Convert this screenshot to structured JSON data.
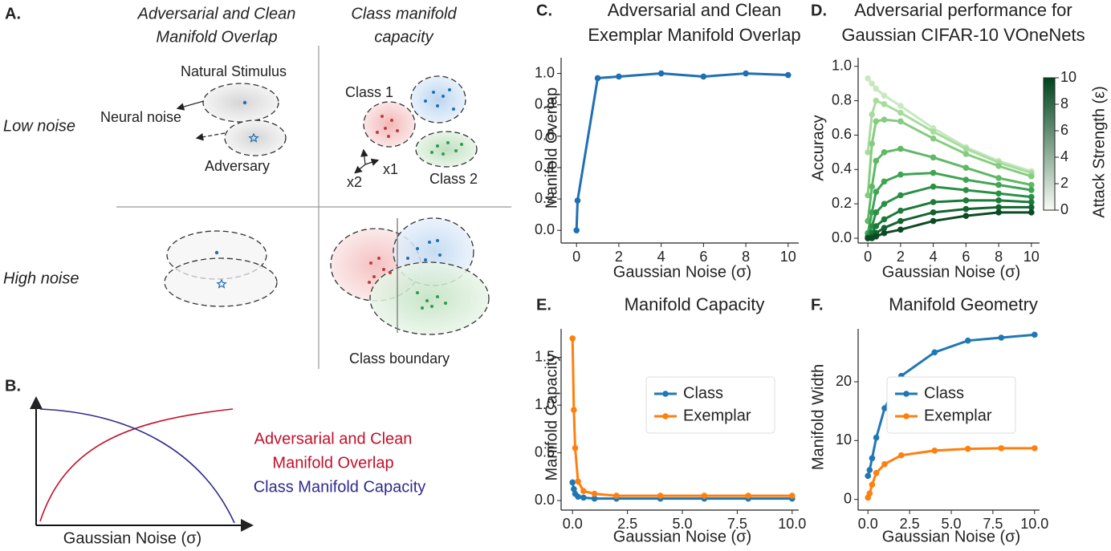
{
  "diagram_a": {
    "label": "A.",
    "column_headers": [
      [
        "Adversarial and Clean",
        "Manifold Overlap"
      ],
      [
        "Class manifold",
        "capacity"
      ]
    ],
    "row_labels": [
      "Low noise",
      "High noise"
    ],
    "annotations": [
      "Natural Stimulus",
      "Neural noise",
      "Adversary",
      "Class 1",
      "x1",
      "x2",
      "Class 2",
      "Class boundary"
    ]
  },
  "diagram_b": {
    "label": "B.",
    "curves": [
      {
        "label": [
          "Adversarial and Clean",
          "Manifold Overlap"
        ],
        "color": "#c0112b"
      },
      {
        "label": [
          "Class Manifold Capacity"
        ],
        "color": "#2e2a8c"
      }
    ],
    "x_label": "Gaussian Noise (σ)"
  },
  "chart_data": [
    {
      "type": "line",
      "label": "C.",
      "title": [
        "Adversarial and Clean",
        "Exemplar Manifold Overlap"
      ],
      "x_label": "Gaussian Noise (σ)",
      "y_label": "Manifold Overlap",
      "x": [
        0,
        0.05,
        1,
        2,
        4,
        6,
        8,
        10
      ],
      "series": [
        {
          "color": "#1f6fb4",
          "values": [
            0,
            0.19,
            0.97,
            0.98,
            1.0,
            0.98,
            1.0,
            0.99
          ]
        }
      ],
      "xlim": [
        -0.5,
        10.5
      ],
      "xticks": [
        0,
        2,
        4,
        6,
        8,
        10
      ],
      "ylim": [
        -0.05,
        1.1
      ],
      "yticks": [
        {
          "value": 0,
          "label": "0.0"
        },
        0.2,
        0.4,
        0.6,
        0.8,
        {
          "value": 1,
          "label": "1.0"
        }
      ]
    },
    {
      "type": "line",
      "label": "D.",
      "title": [
        "Adversarial performance for",
        "Gaussian CIFAR-10 VOneNets"
      ],
      "x_label": "Gaussian Noise (σ)",
      "y_label": "Accuracy",
      "x": [
        0,
        0.25,
        0.5,
        1,
        2,
        4,
        6,
        8,
        10
      ],
      "series": [
        {
          "color": "#c7e9c0",
          "values": [
            0.93,
            0.9,
            0.87,
            0.83,
            0.77,
            0.64,
            0.53,
            0.45,
            0.39
          ]
        },
        {
          "color": "#a8dc9f",
          "values": [
            0.5,
            0.72,
            0.8,
            0.78,
            0.73,
            0.62,
            0.52,
            0.44,
            0.38
          ]
        },
        {
          "color": "#86cc80",
          "values": [
            0.25,
            0.55,
            0.68,
            0.69,
            0.68,
            0.58,
            0.49,
            0.42,
            0.36
          ]
        },
        {
          "color": "#5fb866",
          "values": [
            0.1,
            0.3,
            0.45,
            0.5,
            0.52,
            0.47,
            0.41,
            0.35,
            0.31
          ]
        },
        {
          "color": "#3fa453",
          "values": [
            0.03,
            0.15,
            0.27,
            0.33,
            0.37,
            0.38,
            0.34,
            0.31,
            0.28
          ]
        },
        {
          "color": "#2a9046",
          "values": [
            0.01,
            0.07,
            0.15,
            0.2,
            0.25,
            0.3,
            0.28,
            0.26,
            0.24
          ]
        },
        {
          "color": "#1c7a3a",
          "values": [
            0,
            0.03,
            0.07,
            0.11,
            0.16,
            0.21,
            0.22,
            0.22,
            0.21
          ]
        },
        {
          "color": "#13632f",
          "values": [
            0,
            0.01,
            0.03,
            0.06,
            0.1,
            0.15,
            0.17,
            0.18,
            0.18
          ]
        },
        {
          "color": "#0c4a23",
          "values": [
            0,
            0,
            0.01,
            0.03,
            0.05,
            0.1,
            0.13,
            0.15,
            0.15
          ]
        }
      ],
      "xlim": [
        -0.3,
        10.5
      ],
      "xticks": [
        0,
        2,
        4,
        6,
        8,
        10
      ],
      "ylim": [
        0,
        1.05
      ],
      "yticks": [
        {
          "value": 0,
          "label": "0.0"
        },
        0.2,
        0.4,
        0.6,
        0.8,
        {
          "value": 1,
          "label": "1.0"
        }
      ],
      "colorbar": {
        "label": "Attack Strength (ε)",
        "lim": [
          0,
          10
        ],
        "ticks": [
          0,
          2,
          4,
          6,
          8,
          10
        ],
        "colors": [
          "#f7fcf5",
          "#00441b"
        ]
      }
    },
    {
      "type": "line",
      "label": "E.",
      "title": [
        "Manifold Capacity"
      ],
      "x_label": "Gaussian Noise (σ)",
      "y_label": "Manifold Capacity",
      "x": [
        0,
        0.06,
        0.12,
        0.25,
        0.5,
        1,
        2,
        4,
        6,
        8,
        10
      ],
      "series": [
        {
          "name": "Class",
          "color": "#1f77b4",
          "values": [
            0.19,
            0.12,
            0.07,
            0.04,
            0.03,
            0.02,
            0.02,
            0.02,
            0.02,
            0.02,
            0.02
          ]
        },
        {
          "name": "Exemplar",
          "color": "#ff7f0e",
          "values": [
            1.7,
            0.95,
            0.55,
            0.2,
            0.1,
            0.07,
            0.05,
            0.05,
            0.05,
            0.05,
            0.05
          ]
        }
      ],
      "xlim": [
        -0.3,
        10.3
      ],
      "xticks": [
        {
          "value": 0,
          "label": "0.0"
        },
        2.5,
        {
          "value": 5,
          "label": "5.0"
        },
        7.5,
        {
          "value": 10,
          "label": "10.0"
        }
      ],
      "ylim": [
        -0.05,
        1.8
      ],
      "yticks": [
        {
          "value": 0,
          "label": "0.0"
        },
        0.5,
        {
          "value": 1,
          "label": "1.0"
        },
        1.5
      ],
      "legend": "center right"
    },
    {
      "type": "line",
      "label": "F.",
      "title": [
        "Manifold Geometry"
      ],
      "x_label": "Gaussian Noise (σ)",
      "y_label": "Manifold Width",
      "x": [
        0,
        0.1,
        0.25,
        0.5,
        1,
        2,
        4,
        6,
        8,
        10
      ],
      "series": [
        {
          "name": "Class",
          "color": "#1f77b4",
          "values": [
            4,
            5,
            7,
            10.5,
            15.5,
            21,
            25,
            27,
            27.5,
            28
          ]
        },
        {
          "name": "Exemplar",
          "color": "#ff7f0e",
          "values": [
            0.3,
            1,
            2.5,
            4.5,
            6,
            7.5,
            8.3,
            8.6,
            8.7,
            8.7
          ]
        }
      ],
      "xlim": [
        -0.3,
        10.3
      ],
      "xticks": [
        {
          "value": 0,
          "label": "0.0"
        },
        2.5,
        {
          "value": 5,
          "label": "5.0"
        },
        7.5,
        {
          "value": 10,
          "label": "10.0"
        }
      ],
      "ylim": [
        -1,
        29
      ],
      "yticks": [
        0,
        10,
        20
      ],
      "legend": "center right"
    }
  ]
}
